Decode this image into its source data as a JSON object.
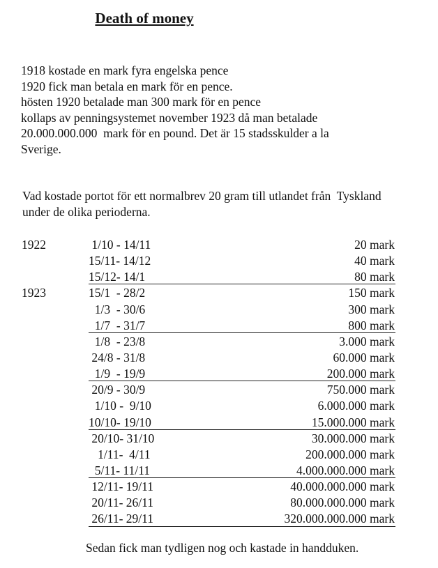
{
  "title": "Death of money",
  "intro": [
    "1918 kostade en mark fyra engelska pence",
    "1920 fick man betala en mark för en pence.",
    "hösten 1920 betalade man 300 mark för en pence",
    "kollaps av penningsystemet november 1923 då man betalade",
    "20.000.000.000  mark för en pound. Det är 15 stadsskulder a la",
    "Sverige."
  ],
  "question": [
    "Vad kostade portot för ett normalbrev 20 gram till utlandet från  Tyskland",
    "under de olika perioderna."
  ],
  "rates": [
    {
      "year": "1922",
      "dates": " 1/10 - 14/11",
      "value": "20 mark",
      "rule": false
    },
    {
      "year": "",
      "dates": "15/11- 14/12",
      "value": "40 mark",
      "rule": false
    },
    {
      "year": "",
      "dates": "15/12- 14/1",
      "value": "80 mark",
      "rule": true
    },
    {
      "year": "1923",
      "dates": "15/1  - 28/2",
      "value": "150 mark",
      "rule": false
    },
    {
      "year": "",
      "dates": "  1/3  - 30/6",
      "value": "300 mark",
      "rule": false
    },
    {
      "year": "",
      "dates": "  1/7  - 31/7",
      "value": "800 mark",
      "rule": true
    },
    {
      "year": "",
      "dates": "  1/8  - 23/8",
      "value": "3.000 mark",
      "rule": false
    },
    {
      "year": "",
      "dates": " 24/8 - 31/8",
      "value": "60.000 mark",
      "rule": false
    },
    {
      "year": "",
      "dates": "  1/9  - 19/9",
      "value": "200.000 mark",
      "rule": true
    },
    {
      "year": "",
      "dates": " 20/9 - 30/9",
      "value": "750.000 mark",
      "rule": false
    },
    {
      "year": "",
      "dates": "  1/10 -  9/10",
      "value": "6.000.000 mark",
      "rule": false
    },
    {
      "year": "",
      "dates": "10/10- 19/10",
      "value": "15.000.000 mark",
      "rule": true
    },
    {
      "year": "",
      "dates": " 20/10- 31/10",
      "value": "30.000.000 mark",
      "rule": false
    },
    {
      "year": "",
      "dates": "   1/11-  4/11",
      "value": "200.000.000 mark",
      "rule": false
    },
    {
      "year": "",
      "dates": "  5/11- 11/11",
      "value": "4.000.000.000 mark",
      "rule": true
    },
    {
      "year": "",
      "dates": " 12/11- 19/11",
      "value": "40.000.000.000 mark",
      "rule": false
    },
    {
      "year": "",
      "dates": " 20/11- 26/11",
      "value": "80.000.000.000 mark",
      "rule": false
    },
    {
      "year": "",
      "dates": " 26/11- 29/11",
      "value": "320.000.000.000 mark",
      "rule": true
    }
  ],
  "footer": "Sedan fick man tydligen nog och kastade in handduken."
}
